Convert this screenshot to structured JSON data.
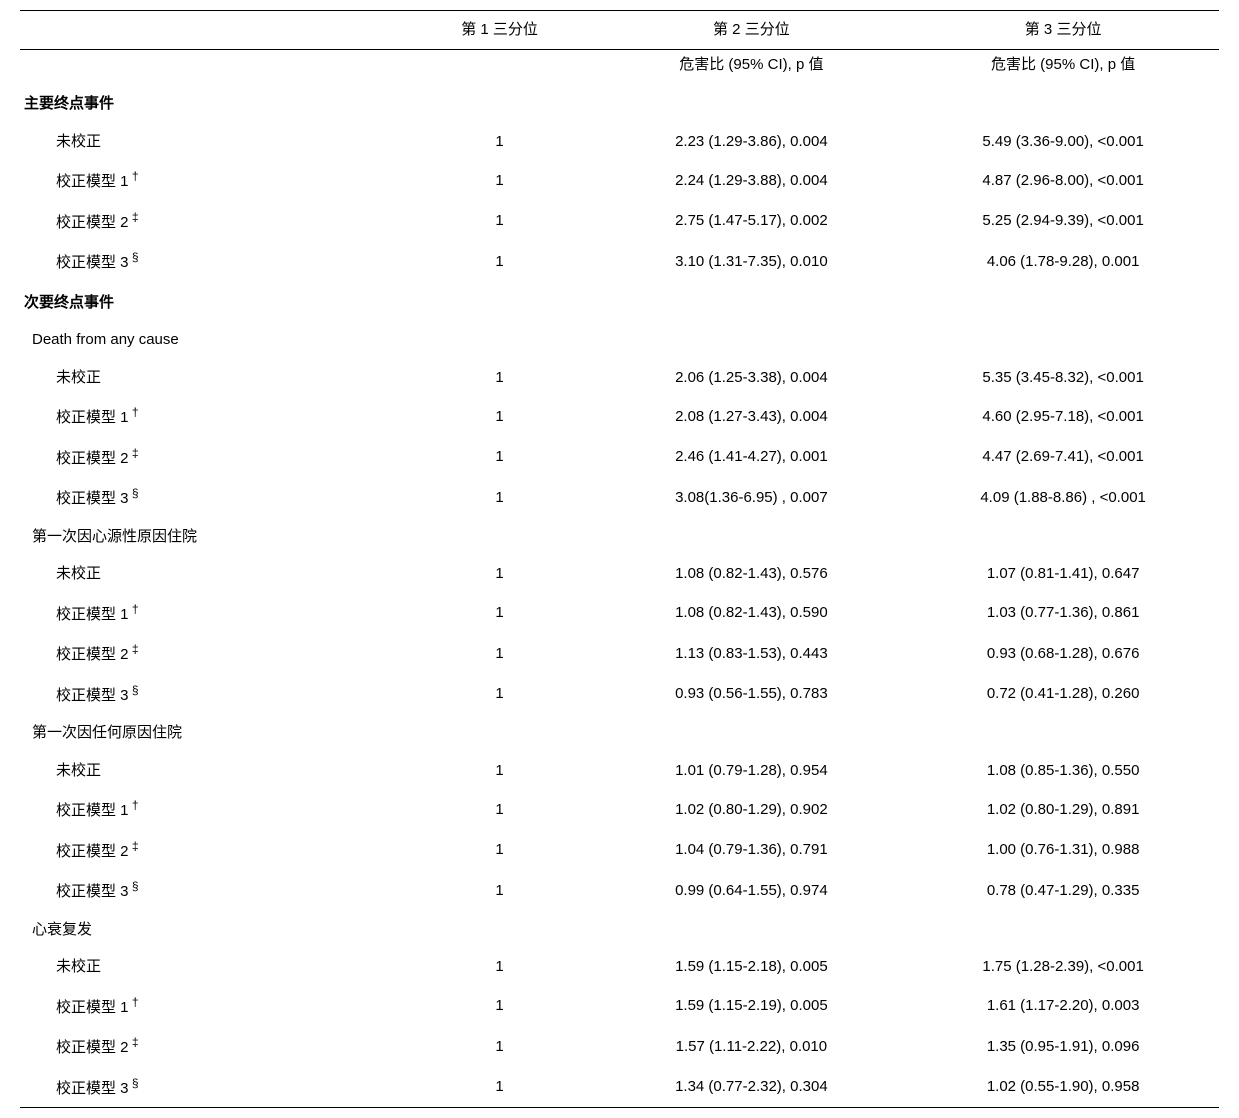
{
  "headers": {
    "blank": "",
    "t1": "第 1 三分位",
    "t2": "第 2 三分位",
    "t3": "第 3 三分位",
    "sub_t2": "危害比 (95% CI), p 值",
    "sub_t3": "危害比 (95% CI), p 值"
  },
  "sections": [
    {
      "title": "主要终点事件",
      "groups": [
        {
          "title": null,
          "rows": [
            {
              "label": "未校正",
              "sup": "",
              "t1": "1",
              "t2": "2.23 (1.29-3.86), 0.004",
              "t3": "5.49 (3.36-9.00), <0.001"
            },
            {
              "label": "校正模型 1",
              "sup": "†",
              "t1": "1",
              "t2": "2.24 (1.29-3.88), 0.004",
              "t3": "4.87 (2.96-8.00), <0.001"
            },
            {
              "label": "校正模型 2",
              "sup": "‡",
              "t1": "1",
              "t2": "2.75 (1.47-5.17), 0.002",
              "t3": "5.25 (2.94-9.39), <0.001"
            },
            {
              "label": "校正模型 3",
              "sup": "§",
              "t1": "1",
              "t2": "3.10 (1.31-7.35), 0.010",
              "t3": "4.06 (1.78-9.28), 0.001"
            }
          ]
        }
      ]
    },
    {
      "title": "次要终点事件",
      "groups": [
        {
          "title": "Death from any cause",
          "rows": [
            {
              "label": "未校正",
              "sup": "",
              "t1": "1",
              "t2": "2.06 (1.25-3.38), 0.004",
              "t3": "5.35 (3.45-8.32), <0.001"
            },
            {
              "label": "校正模型 1",
              "sup": "†",
              "t1": "1",
              "t2": "2.08 (1.27-3.43), 0.004",
              "t3": "4.60 (2.95-7.18), <0.001"
            },
            {
              "label": "校正模型 2",
              "sup": "‡",
              "t1": "1",
              "t2": "2.46 (1.41-4.27), 0.001",
              "t3": "4.47 (2.69-7.41), <0.001"
            },
            {
              "label": "校正模型 3",
              "sup": "§",
              "t1": "1",
              "t2": "3.08(1.36-6.95) , 0.007",
              "t3": "4.09 (1.88-8.86) , <0.001"
            }
          ]
        },
        {
          "title": "第一次因心源性原因住院",
          "rows": [
            {
              "label": "未校正",
              "sup": "",
              "t1": "1",
              "t2": "1.08 (0.82-1.43), 0.576",
              "t3": "1.07 (0.81-1.41), 0.647"
            },
            {
              "label": "校正模型 1",
              "sup": "†",
              "t1": "1",
              "t2": "1.08 (0.82-1.43), 0.590",
              "t3": "1.03 (0.77-1.36), 0.861"
            },
            {
              "label": "校正模型 2",
              "sup": "‡",
              "t1": "1",
              "t2": "1.13 (0.83-1.53), 0.443",
              "t3": "0.93 (0.68-1.28), 0.676"
            },
            {
              "label": "校正模型 3",
              "sup": "§",
              "t1": "1",
              "t2": "0.93 (0.56-1.55), 0.783",
              "t3": "0.72 (0.41-1.28), 0.260"
            }
          ]
        },
        {
          "title": "第一次因任何原因住院",
          "rows": [
            {
              "label": "未校正",
              "sup": "",
              "t1": "1",
              "t2": "1.01 (0.79-1.28), 0.954",
              "t3": "1.08 (0.85-1.36), 0.550"
            },
            {
              "label": "校正模型 1",
              "sup": "†",
              "t1": "1",
              "t2": "1.02 (0.80-1.29), 0.902",
              "t3": "1.02 (0.80-1.29), 0.891"
            },
            {
              "label": "校正模型 2",
              "sup": "‡",
              "t1": "1",
              "t2": "1.04 (0.79-1.36), 0.791",
              "t3": "1.00 (0.76-1.31), 0.988"
            },
            {
              "label": "校正模型 3",
              "sup": "§",
              "t1": "1",
              "t2": "0.99 (0.64-1.55), 0.974",
              "t3": "0.78 (0.47-1.29), 0.335"
            }
          ]
        },
        {
          "title": "心衰复发",
          "rows": [
            {
              "label": "未校正",
              "sup": "",
              "t1": "1",
              "t2": "1.59 (1.15-2.18), 0.005",
              "t3": "1.75 (1.28-2.39), <0.001"
            },
            {
              "label": "校正模型 1",
              "sup": "†",
              "t1": "1",
              "t2": "1.59 (1.15-2.19), 0.005",
              "t3": "1.61 (1.17-2.20), 0.003"
            },
            {
              "label": "校正模型 2",
              "sup": "‡",
              "t1": "1",
              "t2": "1.57 (1.11-2.22), 0.010",
              "t3": "1.35 (0.95-1.91), 0.096"
            },
            {
              "label": "校正模型 3",
              "sup": "§",
              "t1": "1",
              "t2": "1.34 (0.77-2.32), 0.304",
              "t3": "1.02 (0.55-1.90), 0.958"
            }
          ]
        }
      ]
    }
  ]
}
